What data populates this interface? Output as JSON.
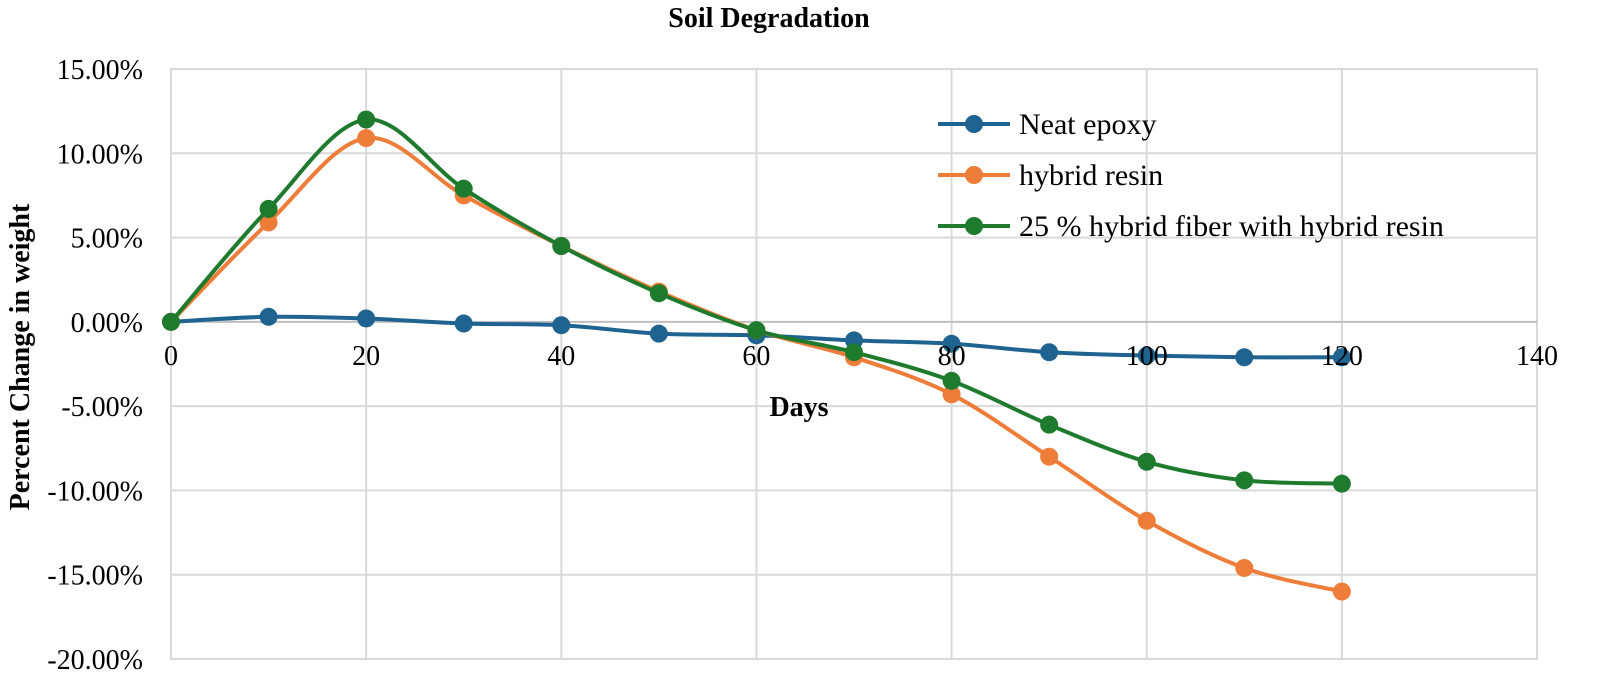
{
  "chart_data": {
    "type": "line",
    "title": "Soil Degradation",
    "xlabel": "Days",
    "ylabel": "Percent Change in weight",
    "xlim": [
      0,
      140
    ],
    "ylim": [
      -20,
      15
    ],
    "x_ticks": [
      0,
      20,
      40,
      60,
      80,
      100,
      120,
      140
    ],
    "y_ticks": [
      15,
      10,
      5,
      0,
      -5,
      -10,
      -15,
      -20
    ],
    "y_tick_labels": [
      "15.00%",
      "10.00%",
      "5.00%",
      "0.00%",
      "-5.00%",
      "-10.00%",
      "-15.00%",
      "-20.00%"
    ],
    "grid": true,
    "smooth": true,
    "legend_position": "top-right",
    "x": [
      0,
      10,
      20,
      30,
      40,
      50,
      60,
      70,
      80,
      90,
      100,
      110,
      120
    ],
    "series": [
      {
        "name": "Neat epoxy",
        "color": "#1f6391",
        "values": [
          0.0,
          0.3,
          0.2,
          -0.1,
          -0.2,
          -0.7,
          -0.8,
          -1.1,
          -1.3,
          -1.8,
          -2.0,
          -2.1,
          -2.1
        ]
      },
      {
        "name": "hybrid resin",
        "color": "#ee7d3a",
        "values": [
          0.0,
          5.9,
          10.9,
          7.5,
          4.5,
          1.8,
          -0.5,
          -2.1,
          -4.3,
          -8.0,
          -11.8,
          -14.6,
          -16.0
        ]
      },
      {
        "name": "25 % hybrid fiber with hybrid resin",
        "color": "#1e7a2d",
        "values": [
          0.0,
          6.7,
          12.0,
          7.9,
          4.5,
          1.7,
          -0.5,
          -1.8,
          -3.5,
          -6.1,
          -8.3,
          -9.4,
          -9.6
        ]
      }
    ]
  }
}
